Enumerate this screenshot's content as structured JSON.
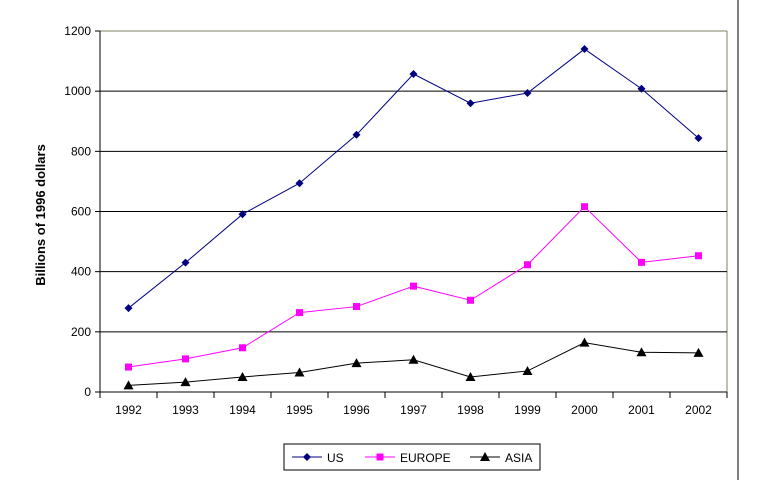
{
  "chart_data": {
    "type": "line",
    "title": "",
    "xlabel": "",
    "ylabel": "Billions of 1996 dollars",
    "categories": [
      "1992",
      "1993",
      "1994",
      "1995",
      "1996",
      "1997",
      "1998",
      "1999",
      "2000",
      "2001",
      "2002"
    ],
    "ylim": [
      0,
      1200
    ],
    "yticks": [
      "0",
      "200",
      "400",
      "600",
      "800",
      "1000",
      "1200"
    ],
    "grid": true,
    "legend_position": "bottom",
    "series": [
      {
        "name": "US",
        "color": "#000080",
        "marker": "diamond",
        "values": [
          279,
          430,
          591,
          694,
          855,
          1057,
          960,
          994,
          1140,
          1008,
          844
        ]
      },
      {
        "name": "EUROPE",
        "color": "#FF00FF",
        "marker": "square",
        "values": [
          83,
          110,
          147,
          264,
          284,
          352,
          305,
          423,
          616,
          431,
          453
        ]
      },
      {
        "name": "ASIA",
        "color": "#000000",
        "marker": "triangle",
        "values": [
          22,
          33,
          50,
          65,
          96,
          107,
          50,
          70,
          164,
          132,
          130
        ]
      }
    ]
  }
}
